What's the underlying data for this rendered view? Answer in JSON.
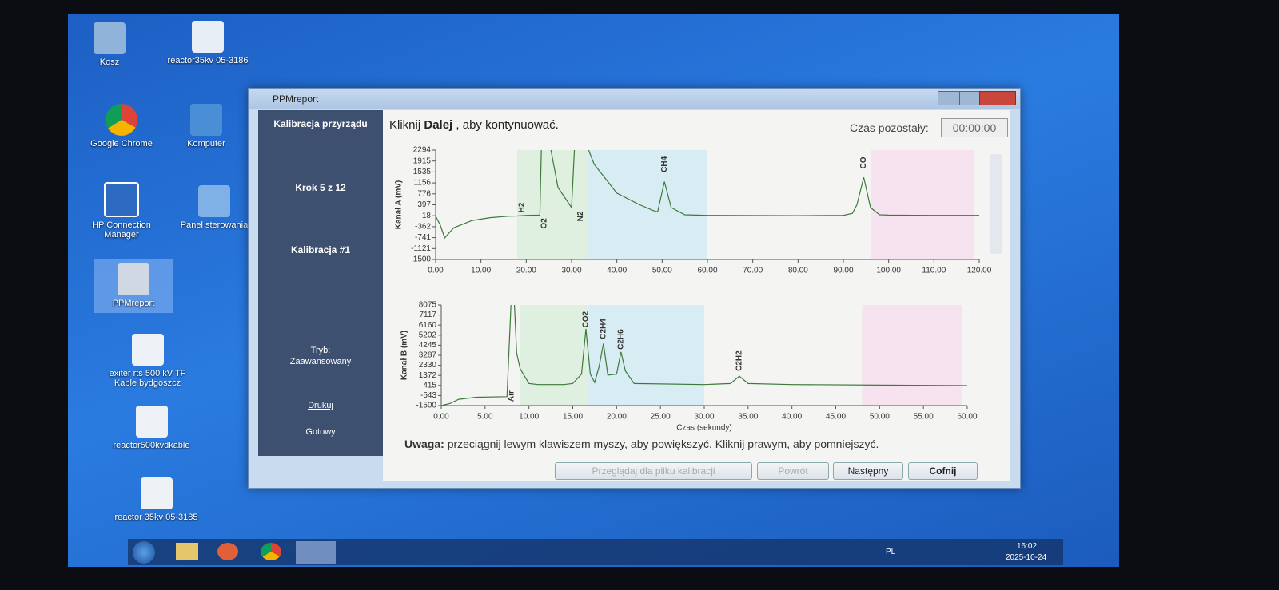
{
  "desktop": {
    "icons": [
      "Kosz",
      "reactor35kv 05-3186",
      "Google Chrome",
      "Komputer",
      "HP Connection Manager",
      "Panel sterowania",
      "PPMreport",
      "exiter rts 500 kV TF Kable bydgoszcz",
      "reactor500kvdkable",
      "reactor 35kv 05-3185"
    ]
  },
  "window": {
    "title": "PPMreport",
    "sidebar": {
      "section": "Kalibracja przyrządu",
      "step": "Krok 5 z 12",
      "calibration": "Kalibracja #1",
      "mode_label": "Tryb:",
      "mode": "Zaawansowany",
      "print": "Drukuj",
      "status": "Gotowy"
    },
    "instruction": {
      "prefix": "Kliknij",
      "bold": "Dalej",
      "suffix": ", aby kontynuować."
    },
    "time_label": "Czas pozostały:",
    "time_value": "00:00:00",
    "note": {
      "label": "Uwaga:",
      "text": "przeciągnij lewym klawiszem myszy, aby powiększyć. Kliknij prawym, aby pomniejszyć."
    },
    "buttons": [
      "Przeglądaj dla pliku kalibracji",
      "Powrót",
      "Następny",
      "Cofnij"
    ]
  },
  "chart_data": [
    {
      "type": "line",
      "y_label": "Kanał A (mV)",
      "xlim": [
        0,
        120
      ],
      "ylim": [
        -1500,
        2294
      ],
      "xticks": [
        {
          "value": 0,
          "label": "0.00"
        },
        {
          "value": 10,
          "label": "10.00"
        },
        {
          "value": 20,
          "label": "20.00"
        },
        {
          "value": 30,
          "label": "30.00"
        },
        {
          "value": 40,
          "label": "40.00"
        },
        {
          "value": 50,
          "label": "50.00"
        },
        {
          "value": 60,
          "label": "60.00"
        },
        {
          "value": 70,
          "label": "70.00"
        },
        {
          "value": 80,
          "label": "80.00"
        },
        {
          "value": 90,
          "label": "90.00"
        },
        {
          "value": 100,
          "label": "100.00"
        },
        {
          "value": 110,
          "label": "110.00"
        },
        {
          "value": 120,
          "label": "120.00"
        }
      ],
      "yticks": [
        2294,
        1915,
        1535,
        1156,
        776,
        397,
        18,
        -362,
        -741,
        -1121,
        -1500
      ],
      "series": [
        {
          "color": "#3d7a3a",
          "x": [
            0,
            1,
            2,
            4,
            8,
            12,
            16,
            18,
            19,
            20,
            23,
            23.5,
            24,
            27,
            30,
            31,
            32,
            35,
            40,
            45,
            48,
            49,
            50.5,
            52,
            55,
            60,
            80,
            90,
            92,
            93,
            94.5,
            96,
            98,
            100,
            110,
            120
          ],
          "values": [
            0,
            -300,
            -750,
            -400,
            -150,
            -50,
            0,
            10,
            20,
            30,
            40,
            3500,
            3500,
            1000,
            300,
            3500,
            3000,
            1800,
            800,
            400,
            200,
            150,
            1200,
            300,
            50,
            30,
            20,
            30,
            100,
            400,
            1350,
            300,
            50,
            40,
            30,
            30
          ]
        }
      ],
      "annotations": [
        {
          "x": 19,
          "y": 300,
          "label": "H2"
        },
        {
          "x": 24,
          "y": -250,
          "label": "O2"
        },
        {
          "x": 32,
          "y": 0,
          "label": "N2"
        },
        {
          "x": 50.5,
          "y": 1800,
          "label": "CH4"
        },
        {
          "x": 94.5,
          "y": 1850,
          "label": "CO"
        }
      ]
    },
    {
      "type": "line",
      "y_label": "Kanał B (mV)",
      "x_label": "Czas (sekundy)",
      "xlim": [
        0,
        60
      ],
      "ylim": [
        -1500,
        8075
      ],
      "xticks": [
        {
          "value": 0,
          "label": "0.00"
        },
        {
          "value": 5,
          "label": "5.00"
        },
        {
          "value": 10,
          "label": "10.00"
        },
        {
          "value": 15,
          "label": "15.00"
        },
        {
          "value": 20,
          "label": "20.00"
        },
        {
          "value": 25,
          "label": "25.00"
        },
        {
          "value": 30,
          "label": "30.00"
        },
        {
          "value": 35,
          "label": "35.00"
        },
        {
          "value": 40,
          "label": "40.00"
        },
        {
          "value": 45,
          "label": "45.00"
        },
        {
          "value": 50,
          "label": "50.00"
        },
        {
          "value": 55,
          "label": "55.00"
        },
        {
          "value": 60,
          "label": "60.00"
        }
      ],
      "yticks": [
        8075,
        7117,
        6160,
        5202,
        4245,
        3287,
        2330,
        1372,
        415,
        -543,
        -1500
      ],
      "series": [
        {
          "color": "#3d7a3a",
          "x": [
            0,
            1,
            2,
            4,
            7.5,
            8,
            8.3,
            8.6,
            9,
            10,
            11,
            14,
            15,
            16,
            16.5,
            17,
            17.5,
            18,
            18.5,
            19,
            20,
            20.5,
            21,
            22,
            30,
            33,
            34,
            35,
            40,
            50,
            60
          ],
          "values": [
            -1500,
            -1300,
            -900,
            -700,
            -650,
            9000,
            9000,
            3500,
            2000,
            600,
            500,
            500,
            600,
            1500,
            5800,
            1500,
            700,
            2200,
            4400,
            1400,
            1500,
            3600,
            1800,
            600,
            500,
            600,
            1300,
            600,
            500,
            450,
            400
          ]
        }
      ],
      "annotations": [
        {
          "x": 8,
          "y": -600,
          "label": "Air"
        },
        {
          "x": 16.5,
          "y": 6700,
          "label": "CO2"
        },
        {
          "x": 18.5,
          "y": 5800,
          "label": "C2H4"
        },
        {
          "x": 20.5,
          "y": 4800,
          "label": "C2H6"
        },
        {
          "x": 34,
          "y": 2750,
          "label": "C2H2"
        }
      ]
    }
  ],
  "taskbar": {
    "language": "PL",
    "time": "16:02",
    "date": "2025-10-24"
  }
}
